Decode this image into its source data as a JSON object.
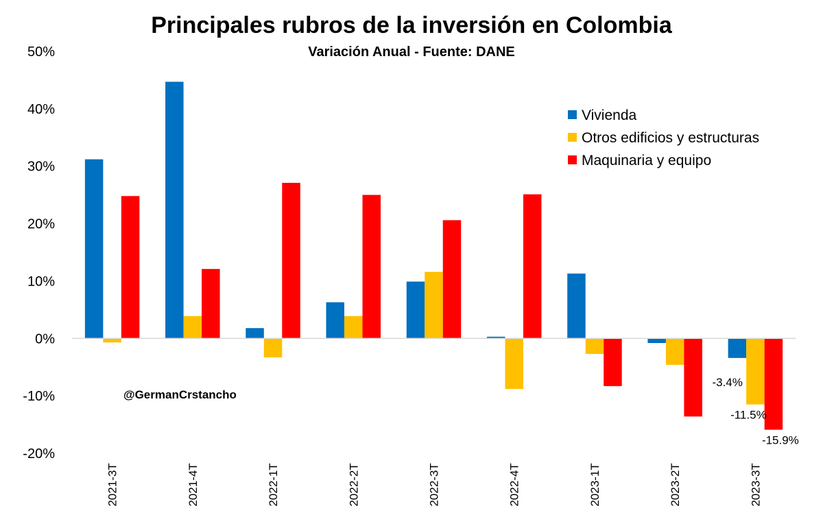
{
  "chart_data": {
    "type": "bar",
    "title": "Principales rubros de la inversión en Colombia",
    "subtitle": "Variación Anual - Fuente: DANE",
    "watermark": "@GermanCrstancho",
    "categories": [
      "2021-3T",
      "2021-4T",
      "2022-1T",
      "2022-2T",
      "2022-3T",
      "2022-4T",
      "2023-1T",
      "2023-2T",
      "2023-3T"
    ],
    "series": [
      {
        "name": "Vivienda",
        "color": "#0070C0",
        "values": [
          31.2,
          44.7,
          1.8,
          6.3,
          9.9,
          0.3,
          11.3,
          -0.8,
          -3.4
        ]
      },
      {
        "name": "Otros edificios y estructuras",
        "color": "#FFC000",
        "values": [
          -0.7,
          3.9,
          -3.3,
          3.9,
          11.6,
          -8.8,
          -2.7,
          -4.6,
          -11.5
        ]
      },
      {
        "name": "Maquinaria y equipo",
        "color": "#FF0000",
        "values": [
          24.8,
          12.1,
          27.1,
          25.0,
          20.6,
          25.1,
          -8.3,
          -13.6,
          -15.9
        ]
      }
    ],
    "data_labels": [
      {
        "series": 0,
        "index": 8,
        "text": "-3.4%"
      },
      {
        "series": 1,
        "index": 8,
        "text": "-11.5%"
      },
      {
        "series": 2,
        "index": 8,
        "text": "-15.9%"
      }
    ],
    "yticks": [
      "-20%",
      "-10%",
      "0%",
      "10%",
      "20%",
      "30%",
      "40%",
      "50%"
    ],
    "ylim": [
      -20,
      50
    ],
    "xlabel": "",
    "ylabel": "",
    "grid": false,
    "legend_position": "top-right"
  }
}
